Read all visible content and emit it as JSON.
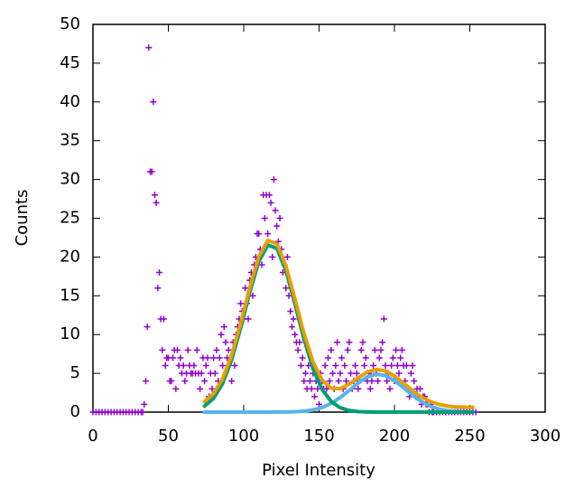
{
  "chart_data": {
    "type": "scatter",
    "xlabel": "Pixel Intensity",
    "ylabel": "Counts",
    "xlim": [
      0,
      300
    ],
    "ylim": [
      0,
      50
    ],
    "xticks": [
      0,
      50,
      100,
      150,
      200,
      250,
      300
    ],
    "yticks": [
      0,
      5,
      10,
      15,
      20,
      25,
      30,
      35,
      40,
      45,
      50
    ],
    "series": [
      {
        "mode": "points",
        "color": "#9400d3",
        "x": [
          0,
          2,
          4,
          6,
          8,
          10,
          12,
          14,
          16,
          18,
          20,
          22,
          24,
          26,
          28,
          30,
          32,
          33,
          34,
          35,
          36,
          37,
          38,
          39,
          40,
          41,
          42,
          43,
          44,
          45,
          46,
          47,
          48,
          49,
          50,
          51,
          52,
          53,
          54,
          55,
          56,
          57,
          58,
          59,
          60,
          61,
          62,
          63,
          64,
          65,
          66,
          67,
          68,
          69,
          70,
          71,
          72,
          73,
          74,
          75,
          76,
          77,
          78,
          79,
          80,
          81,
          82,
          83,
          84,
          85,
          86,
          87,
          88,
          89,
          90,
          91,
          92,
          93,
          94,
          95,
          96,
          97,
          98,
          99,
          100,
          101,
          102,
          103,
          104,
          105,
          106,
          107,
          108,
          109,
          110,
          111,
          112,
          113,
          114,
          115,
          116,
          117,
          118,
          119,
          120,
          121,
          122,
          123,
          124,
          125,
          126,
          127,
          128,
          129,
          130,
          131,
          132,
          133,
          134,
          135,
          136,
          137,
          138,
          139,
          140,
          141,
          142,
          143,
          144,
          145,
          146,
          147,
          148,
          149,
          150,
          151,
          152,
          153,
          154,
          155,
          156,
          157,
          158,
          159,
          160,
          161,
          162,
          163,
          164,
          165,
          166,
          167,
          168,
          169,
          170,
          171,
          172,
          173,
          174,
          175,
          176,
          177,
          178,
          179,
          180,
          181,
          182,
          183,
          184,
          185,
          186,
          187,
          188,
          189,
          190,
          191,
          192,
          193,
          194,
          195,
          196,
          197,
          198,
          199,
          200,
          201,
          202,
          203,
          204,
          205,
          206,
          207,
          208,
          209,
          210,
          211,
          212,
          213,
          214,
          215,
          216,
          217,
          218,
          219,
          220,
          221,
          222,
          223,
          224,
          225,
          226,
          228,
          230,
          232,
          234,
          236,
          238,
          240,
          242,
          244,
          246,
          248,
          250,
          252,
          254
        ],
        "values": [
          0,
          0,
          0,
          0,
          0,
          0,
          0,
          0,
          0,
          0,
          0,
          0,
          0,
          0,
          0,
          0,
          0,
          0,
          1,
          4,
          11,
          47,
          31,
          31,
          40,
          28,
          27,
          16,
          18,
          12,
          8,
          12,
          6,
          7,
          7,
          4,
          4,
          7,
          8,
          3,
          8,
          6,
          7,
          5,
          6,
          4,
          5,
          8,
          6,
          5,
          5,
          6,
          5,
          8,
          5,
          3,
          5,
          7,
          4,
          6,
          7,
          2,
          5,
          3,
          7,
          5,
          8,
          4,
          7,
          10,
          6,
          11,
          9,
          7,
          8,
          7,
          4,
          9,
          6,
          10,
          11,
          12,
          14,
          13,
          12,
          16,
          14,
          12,
          17,
          18,
          15,
          19,
          20,
          23,
          23,
          21,
          19,
          28,
          25,
          28,
          23,
          28,
          27,
          20,
          30,
          26,
          24,
          22,
          25,
          21,
          18,
          19,
          16,
          20,
          15,
          13,
          11,
          12,
          10,
          9,
          8,
          9,
          6,
          7,
          4,
          5,
          3,
          6,
          4,
          3,
          5,
          2,
          4,
          3,
          1,
          5,
          4,
          3,
          6,
          3,
          7,
          4,
          8,
          5,
          3,
          6,
          9,
          4,
          5,
          7,
          3,
          6,
          4,
          8,
          9,
          5,
          3,
          4,
          6,
          5,
          3,
          4,
          8,
          9,
          6,
          7,
          4,
          5,
          3,
          4,
          6,
          8,
          5,
          4,
          7,
          8,
          9,
          12,
          6,
          4,
          5,
          3,
          6,
          7,
          4,
          8,
          6,
          5,
          7,
          8,
          6,
          4,
          6,
          3,
          2,
          5,
          6,
          4,
          2,
          3,
          2,
          3,
          1,
          2,
          2,
          1,
          1,
          0,
          1,
          0,
          0,
          0,
          0,
          0,
          0,
          0,
          0,
          0,
          0,
          0,
          0,
          0,
          0,
          0,
          0
        ]
      },
      {
        "mode": "line",
        "color": "#56b4e9",
        "x": [
          74,
          80,
          86,
          92,
          98,
          104,
          110,
          116,
          122,
          128,
          134,
          140,
          146,
          152,
          158,
          164,
          170,
          176,
          182,
          188,
          194,
          200,
          206,
          212,
          218,
          224,
          230,
          236,
          242,
          248,
          252
        ],
        "values": [
          0,
          0,
          0,
          0,
          0,
          0,
          0,
          0,
          0.01,
          0.02,
          0.05,
          0.12,
          0.28,
          0.59,
          1.11,
          1.87,
          2.81,
          3.77,
          4.54,
          4.89,
          4.71,
          4.07,
          3.14,
          2.17,
          1.34,
          0.74,
          0.37,
          0.16,
          0.06,
          0.02,
          0.01
        ]
      },
      {
        "mode": "line",
        "color": "#009e73",
        "x": [
          74,
          80,
          86,
          92,
          98,
          104,
          110,
          116,
          122,
          128,
          134,
          140,
          146,
          152,
          158,
          164,
          170,
          176,
          182,
          188,
          194,
          200,
          206,
          212,
          218,
          224,
          230,
          236,
          242,
          248,
          252
        ],
        "values": [
          0.76,
          1.78,
          3.69,
          6.73,
          10.86,
          15.46,
          19.42,
          21.55,
          21.11,
          18.25,
          13.93,
          9.4,
          5.59,
          2.94,
          1.36,
          0.56,
          0.2,
          0.06,
          0.02,
          0,
          0,
          0,
          0,
          0,
          0,
          0,
          0,
          0,
          0,
          0,
          0
        ]
      },
      {
        "mode": "line",
        "color": "#e69f00",
        "x": [
          74,
          80,
          86,
          92,
          98,
          104,
          110,
          116,
          122,
          128,
          134,
          140,
          146,
          152,
          158,
          164,
          170,
          176,
          182,
          188,
          194,
          200,
          206,
          212,
          218,
          224,
          230,
          236,
          242,
          248,
          252
        ],
        "values": [
          1.36,
          2.38,
          4.29,
          7.33,
          11.46,
          16.06,
          20.02,
          22.15,
          21.71,
          18.87,
          14.58,
          10.12,
          6.47,
          4.13,
          3.07,
          3.03,
          3.61,
          4.43,
          5.16,
          5.49,
          5.31,
          4.67,
          3.74,
          2.77,
          1.94,
          1.34,
          0.97,
          0.76,
          0.66,
          0.62,
          0.61
        ]
      }
    ]
  }
}
